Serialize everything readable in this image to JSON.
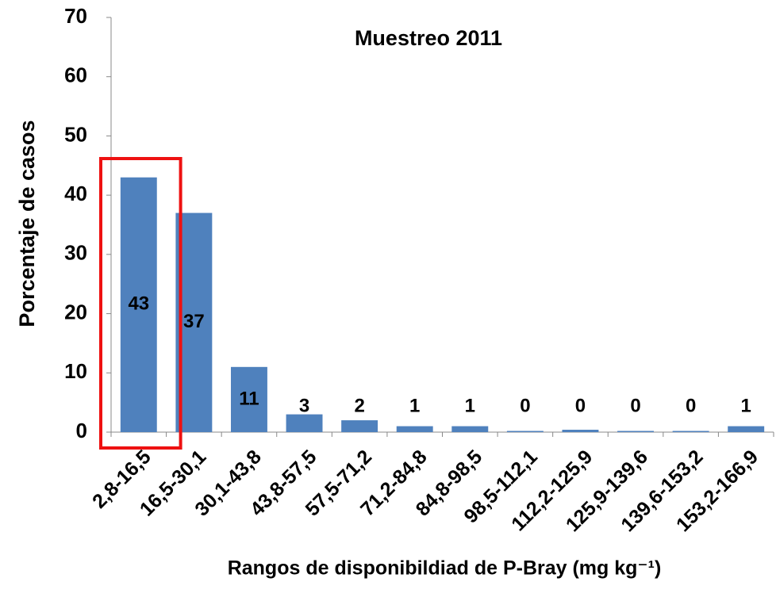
{
  "chart_data": {
    "type": "bar",
    "title": "Muestreo 2011",
    "xlabel": "Rangos de disponibildiad de P-Bray (mg kg⁻¹)",
    "ylabel": "Porcentaje de casos",
    "categories": [
      "2,8-16,5",
      "16,5-30,1",
      "30,1-43,8",
      "43,8-57,5",
      "57,5-71,2",
      "71,2-84,8",
      "84,8-98,5",
      "98,5-112,1",
      "112,2-125,9",
      "125,9-139,6",
      "139,6-153,2",
      "153,2-166,9"
    ],
    "values": [
      43,
      37,
      11,
      3,
      2,
      1,
      1,
      0.2,
      0.4,
      0.2,
      0.2,
      1
    ],
    "value_labels": [
      "43",
      "37",
      "11",
      "3",
      "2",
      "1",
      "1",
      "0",
      "0",
      "0",
      "0",
      "1"
    ],
    "color": "#4f81bd",
    "ylim": [
      0,
      70
    ],
    "yticks": [
      0,
      10,
      20,
      30,
      40,
      50,
      60,
      70
    ]
  }
}
